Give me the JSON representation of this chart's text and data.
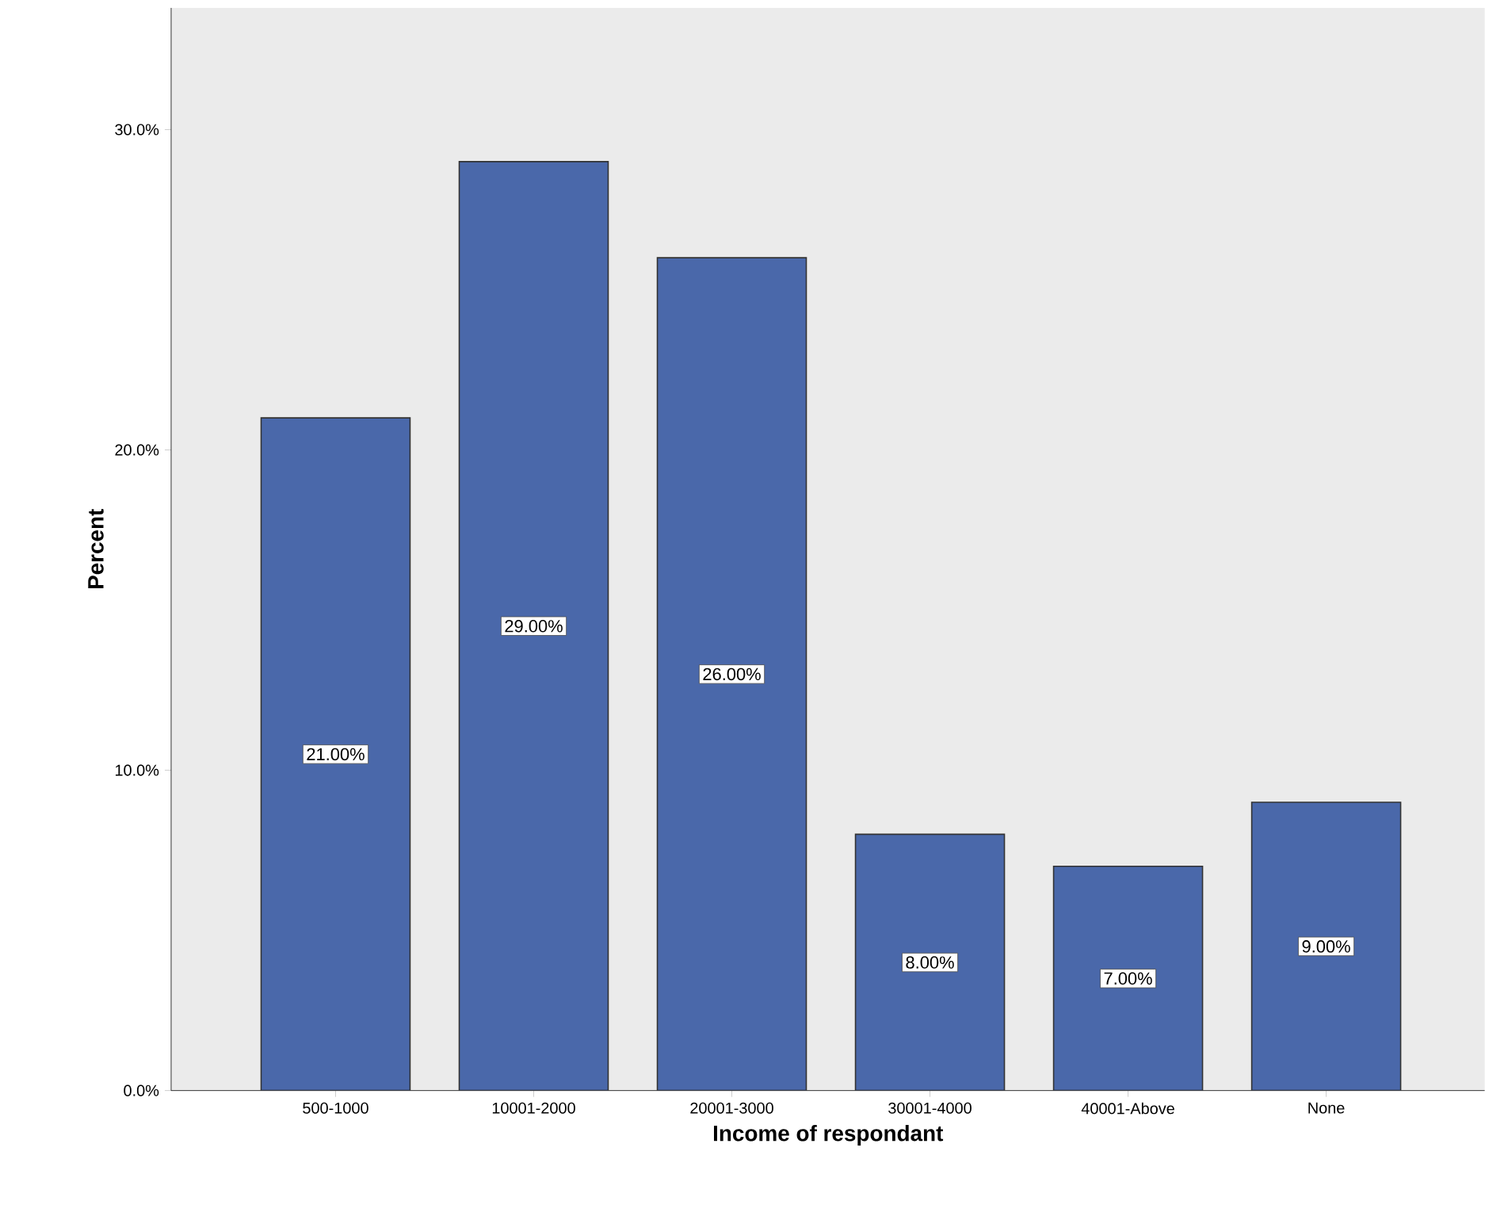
{
  "chart_data": {
    "type": "bar",
    "xlabel": "Income of respondant",
    "ylabel": "Percent",
    "categories": [
      "500-1000",
      "10001-2000",
      "20001-3000",
      "30001-4000",
      "40001-Above",
      "None"
    ],
    "values": [
      21,
      29,
      26,
      8,
      7,
      9
    ],
    "value_labels": [
      "21.00%",
      "29.00%",
      "26.00%",
      "8.00%",
      "7.00%",
      "9.00%"
    ],
    "color": "#4a68aa",
    "ylim": [
      0,
      33.8
    ],
    "yticks": [
      {
        "value": 0,
        "label": "0.0%"
      },
      {
        "value": 10,
        "label": "10.0%"
      },
      {
        "value": 20,
        "label": "20.0%"
      },
      {
        "value": 30,
        "label": "30.0%"
      }
    ],
    "grid": false
  }
}
